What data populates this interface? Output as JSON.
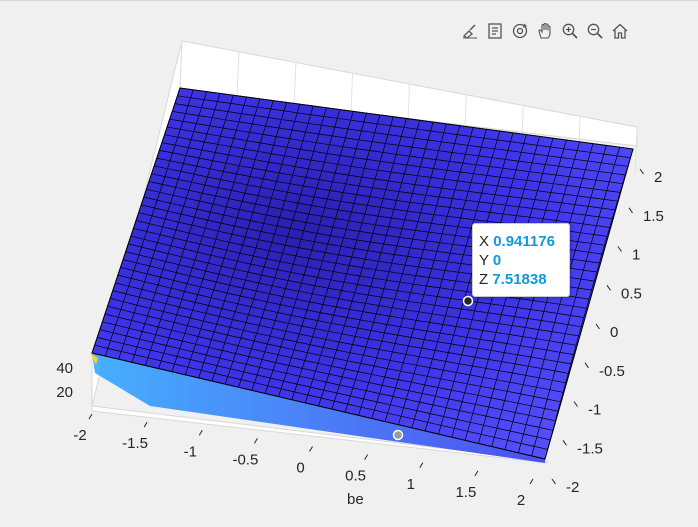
{
  "toolbar": {
    "buttons": [
      {
        "name": "brush-icon"
      },
      {
        "name": "datatip-icon"
      },
      {
        "name": "rotate-3d-icon"
      },
      {
        "name": "pan-hand-icon"
      },
      {
        "name": "zoom-in-icon"
      },
      {
        "name": "zoom-out-icon"
      },
      {
        "name": "home-icon"
      }
    ]
  },
  "axes": {
    "xlabel": "be",
    "x_ticks": [
      "-2",
      "-1.5",
      "-1",
      "-0.5",
      "0",
      "0.5",
      "1",
      "1.5",
      "2"
    ],
    "y_ticks": [
      "-2",
      "-1.5",
      "-1",
      "-0.5",
      "0",
      "0.5",
      "1",
      "1.5",
      "2"
    ],
    "z_ticks": [
      "20",
      "40"
    ],
    "xlim": [
      -2,
      2
    ],
    "ylim": [
      -2,
      2
    ]
  },
  "datatip": {
    "x_label": "X",
    "x_value": "0.941176",
    "y_label": "Y",
    "y_value": "0",
    "z_label": "Z",
    "z_value": "7.51838"
  },
  "colors": {
    "surface_dark": "#2a1fb0",
    "surface_mid": "#4a3ff0",
    "surface_light": "#3a8cff",
    "edge": "#000000",
    "corner_yellow": "#f2d23a",
    "datatip_value": "#0e99e0"
  }
}
